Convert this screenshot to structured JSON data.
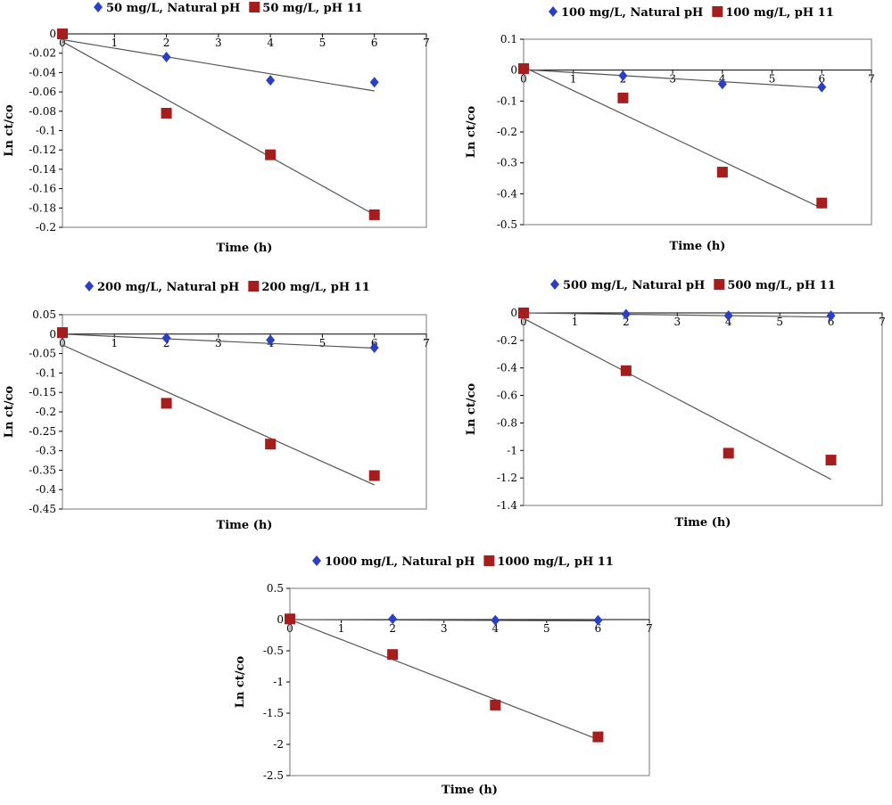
{
  "colors": {
    "natural": "#2b3fc4",
    "ph11": "#a51d1d",
    "line": "#555555",
    "frame": "#777777"
  },
  "chart_data": [
    {
      "type": "scatter",
      "xlabel": "Time (h)",
      "ylabel": "Ln ct/co",
      "xlim": [
        0,
        7
      ],
      "ylim": [
        -0.2,
        0
      ],
      "xticks": [
        "0",
        "1",
        "2",
        "3",
        "4",
        "5",
        "6",
        "7"
      ],
      "yticks": [
        "0",
        "-0.02",
        "-0.04",
        "-0.06",
        "-0.08",
        "-0.1",
        "-0.12",
        "-0.14",
        "-0.16",
        "-0.18",
        "-0.2"
      ],
      "grid": false,
      "legend": "top-left",
      "series": [
        {
          "name": "50 mg/L, Natural pH",
          "marker": "diamond",
          "x": [
            0,
            2,
            4,
            6
          ],
          "y": [
            0,
            -0.024,
            -0.048,
            -0.05
          ],
          "trendline": [
            [
              0,
              -0.006
            ],
            [
              6,
              -0.059
            ]
          ]
        },
        {
          "name": "50 mg/L, pH 11",
          "marker": "square",
          "x": [
            0,
            2,
            4,
            6
          ],
          "y": [
            0,
            -0.082,
            -0.125,
            -0.187
          ],
          "trendline": [
            [
              0,
              -0.008
            ],
            [
              6,
              -0.187
            ]
          ]
        }
      ]
    },
    {
      "type": "scatter",
      "xlabel": "Time (h)",
      "ylabel": "Ln ct/co",
      "xlim": [
        0,
        7
      ],
      "ylim": [
        -0.5,
        0.1
      ],
      "xticks": [
        "0",
        "1",
        "2",
        "3",
        "4",
        "5",
        "6",
        "7"
      ],
      "yticks": [
        "0.1",
        "0",
        "-0.1",
        "-0.2",
        "-0.3",
        "-0.4",
        "-0.5"
      ],
      "grid": false,
      "legend": "top-center",
      "series": [
        {
          "name": "100 mg/L, Natural pH",
          "marker": "diamond",
          "x": [
            0,
            2,
            4,
            6
          ],
          "y": [
            0,
            -0.018,
            -0.045,
            -0.055
          ],
          "trendline": [
            [
              0,
              0.002
            ],
            [
              6,
              -0.057
            ]
          ]
        },
        {
          "name": "100 mg/L, pH 11",
          "marker": "square",
          "x": [
            0,
            2,
            4,
            6
          ],
          "y": [
            0.005,
            -0.09,
            -0.33,
            -0.43
          ],
          "trendline": [
            [
              0,
              0.01
            ],
            [
              6,
              -0.447
            ]
          ]
        }
      ]
    },
    {
      "type": "scatter",
      "xlabel": "Time (h)",
      "ylabel": "Ln ct/co",
      "xlim": [
        0,
        7
      ],
      "ylim": [
        -0.45,
        0.05
      ],
      "xticks": [
        "0",
        "1",
        "2",
        "3",
        "4",
        "5",
        "6",
        "7"
      ],
      "yticks": [
        "0.05",
        "0",
        "-0.05",
        "-0.1",
        "-0.15",
        "-0.2",
        "-0.25",
        "-0.3",
        "-0.35",
        "-0.4",
        "-0.45"
      ],
      "grid": false,
      "legend": "top-center",
      "series": [
        {
          "name": "200 mg/L, Natural pH",
          "marker": "diamond",
          "x": [
            0,
            2,
            4,
            6
          ],
          "y": [
            0,
            -0.01,
            -0.015,
            -0.035
          ],
          "trendline": [
            [
              0,
              0
            ],
            [
              6,
              -0.036
            ]
          ]
        },
        {
          "name": "200 mg/L, pH 11",
          "marker": "square",
          "x": [
            0,
            2,
            4,
            6
          ],
          "y": [
            0.004,
            -0.178,
            -0.283,
            -0.364
          ],
          "trendline": [
            [
              0,
              -0.028
            ],
            [
              6,
              -0.388
            ]
          ]
        }
      ]
    },
    {
      "type": "scatter",
      "xlabel": "Time (h)",
      "ylabel": "Ln ct/co",
      "xlim": [
        0,
        7
      ],
      "ylim": [
        -1.4,
        0
      ],
      "xticks": [
        "0",
        "1",
        "2",
        "3",
        "4",
        "5",
        "6",
        "7"
      ],
      "yticks": [
        "0",
        "-0.2",
        "-0.4",
        "-0.6",
        "-0.8",
        "-1",
        "-1.2",
        "-1.4"
      ],
      "grid": false,
      "legend": "top-center",
      "series": [
        {
          "name": "500 mg/L, Natural pH",
          "marker": "diamond",
          "x": [
            0,
            2,
            4,
            6
          ],
          "y": [
            0,
            -0.01,
            -0.02,
            -0.02
          ],
          "trendline": [
            [
              0,
              0
            ],
            [
              6,
              -0.03
            ]
          ]
        },
        {
          "name": "500 mg/L, pH 11",
          "marker": "square",
          "x": [
            0,
            2,
            4,
            6
          ],
          "y": [
            0,
            -0.42,
            -1.02,
            -1.07
          ],
          "trendline": [
            [
              0,
              -0.04
            ],
            [
              6,
              -1.21
            ]
          ]
        }
      ]
    },
    {
      "type": "scatter",
      "xlabel": "Time (h)",
      "ylabel": "Ln ct/co",
      "xlim": [
        0,
        7
      ],
      "ylim": [
        -2.5,
        0.5
      ],
      "xticks": [
        "0",
        "1",
        "2",
        "3",
        "4",
        "5",
        "6",
        "7"
      ],
      "yticks": [
        "0.5",
        "0",
        "-0.5",
        "-1",
        "-1.5",
        "-2",
        "-2.5"
      ],
      "grid": false,
      "legend": "top-center",
      "series": [
        {
          "name": "1000 mg/L, Natural pH",
          "marker": "diamond",
          "x": [
            0,
            2,
            4,
            6
          ],
          "y": [
            0,
            0.01,
            -0.01,
            -0.01
          ],
          "trendline": [
            [
              0,
              0
            ],
            [
              6,
              -0.02
            ]
          ]
        },
        {
          "name": "1000 mg/L, pH 11",
          "marker": "square",
          "x": [
            0,
            2,
            4,
            6
          ],
          "y": [
            0.01,
            -0.56,
            -1.37,
            -1.88
          ],
          "trendline": [
            [
              0,
              0
            ],
            [
              6,
              -1.92
            ]
          ]
        }
      ]
    }
  ]
}
